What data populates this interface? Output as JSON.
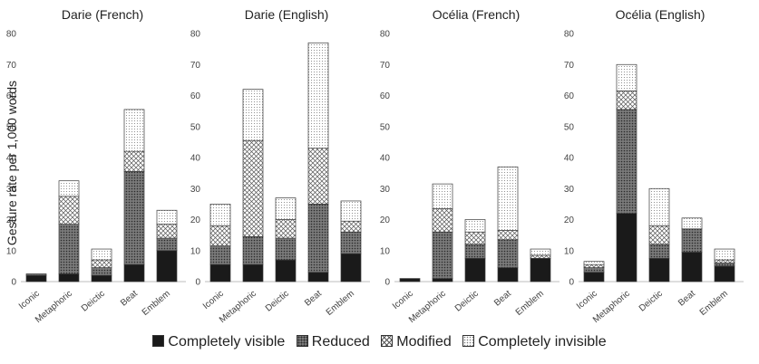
{
  "figure": {
    "ylabel": "Gesture rate per 1,000 words",
    "legend": [
      "Completely visible",
      "Reduced",
      "Modified",
      "Completely invisible"
    ]
  },
  "chart_data": [
    {
      "type": "bar",
      "stacked": true,
      "title": "Darie (French)",
      "categories": [
        "Iconic",
        "Metaphoric",
        "Deictic",
        "Beat",
        "Emblem"
      ],
      "ylim": [
        0,
        80
      ],
      "yticks": [
        0,
        10,
        20,
        30,
        40,
        50,
        60,
        70,
        80
      ],
      "grid": false,
      "series": [
        {
          "name": "Completely visible",
          "values": [
            2,
            2.5,
            2,
            5.5,
            10
          ]
        },
        {
          "name": "Reduced",
          "values": [
            0.5,
            16,
            2.5,
            30,
            4
          ]
        },
        {
          "name": "Modified",
          "values": [
            0,
            9,
            2.5,
            6.5,
            4.5
          ]
        },
        {
          "name": "Completely invisible",
          "values": [
            0,
            5,
            3.5,
            13.5,
            4.5
          ]
        }
      ]
    },
    {
      "type": "bar",
      "stacked": true,
      "title": "Darie (English)",
      "categories": [
        "Iconic",
        "Metaphoric",
        "Deictic",
        "Beat",
        "Emblem"
      ],
      "ylim": [
        0,
        80
      ],
      "yticks": [
        0,
        10,
        20,
        30,
        40,
        50,
        60,
        70,
        80
      ],
      "grid": false,
      "series": [
        {
          "name": "Completely visible",
          "values": [
            5.5,
            5.5,
            7,
            3,
            9
          ]
        },
        {
          "name": "Reduced",
          "values": [
            6,
            9,
            7,
            22,
            7
          ]
        },
        {
          "name": "Modified",
          "values": [
            6.5,
            31,
            6,
            18,
            3.5
          ]
        },
        {
          "name": "Completely invisible",
          "values": [
            7,
            16.5,
            7,
            34,
            6.5
          ]
        }
      ]
    },
    {
      "type": "bar",
      "stacked": true,
      "title": "Océlia (French)",
      "categories": [
        "Iconic",
        "Metaphoric",
        "Deictic",
        "Beat",
        "Emblem"
      ],
      "ylim": [
        0,
        80
      ],
      "yticks": [
        0,
        10,
        20,
        30,
        40,
        50,
        60,
        70,
        80
      ],
      "grid": false,
      "series": [
        {
          "name": "Completely visible",
          "values": [
            1,
            1,
            7.5,
            4.5,
            7.5
          ]
        },
        {
          "name": "Reduced",
          "values": [
            0,
            15,
            4.5,
            9,
            0
          ]
        },
        {
          "name": "Modified",
          "values": [
            0,
            7.5,
            4,
            3,
            1
          ]
        },
        {
          "name": "Completely invisible",
          "values": [
            0,
            8,
            4,
            20.5,
            2
          ]
        }
      ]
    },
    {
      "type": "bar",
      "stacked": true,
      "title": "Océlia (English)",
      "categories": [
        "Iconic",
        "Metaphoric",
        "Deictic",
        "Beat",
        "Emblem"
      ],
      "ylim": [
        0,
        80
      ],
      "yticks": [
        0,
        10,
        20,
        30,
        40,
        50,
        60,
        70,
        80
      ],
      "grid": false,
      "series": [
        {
          "name": "Completely visible",
          "values": [
            3,
            22,
            7.5,
            9.5,
            5
          ]
        },
        {
          "name": "Reduced",
          "values": [
            1.5,
            33.5,
            4.5,
            7.5,
            1
          ]
        },
        {
          "name": "Modified",
          "values": [
            1,
            6,
            6,
            0,
            1
          ]
        },
        {
          "name": "Completely invisible",
          "values": [
            1,
            8.5,
            12,
            3.5,
            3.5
          ]
        }
      ]
    }
  ]
}
